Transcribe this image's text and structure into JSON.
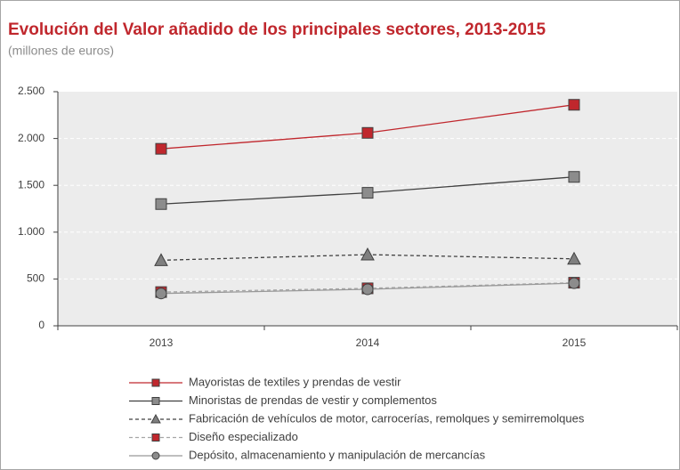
{
  "chart_data": {
    "type": "line",
    "title": "Evolución del Valor añadido de los principales sectores, 2013-2015",
    "subtitle": "(millones de euros)",
    "categories": [
      "2013",
      "2014",
      "2015"
    ],
    "series": [
      {
        "name": "Mayoristas de textiles y prendas de vestir",
        "color": "#c0272d",
        "marker": "square",
        "marker_color": "#c0272d",
        "dash": false,
        "values": [
          1890,
          2060,
          2360
        ]
      },
      {
        "name": "Minoristas de prendas de vestir y complementos",
        "color": "#404040",
        "marker": "square",
        "marker_color": "#8c8c8c",
        "dash": false,
        "values": [
          1300,
          1420,
          1590
        ]
      },
      {
        "name": "Fabricación de vehículos de motor, carrocerías, remolques y semirremolques",
        "color": "#404040",
        "marker": "triangle",
        "marker_color": "#7f7f7f",
        "dash": true,
        "values": [
          700,
          760,
          715
        ]
      },
      {
        "name": "Diseño especializado",
        "color": "#a6a6a6",
        "marker": "square",
        "marker_color": "#c0272d",
        "dash": true,
        "values": [
          360,
          400,
          460
        ]
      },
      {
        "name": "Depósito, almacenamiento y manipulación de mercancías",
        "color": "#999999",
        "marker": "circle",
        "marker_color": "#8c8c8c",
        "dash": false,
        "values": [
          345,
          390,
          455
        ]
      }
    ],
    "ylim": [
      0,
      2500
    ],
    "yticks": [
      0,
      500,
      {
        "value": 1000,
        "label": "1.000"
      },
      {
        "value": 1500,
        "label": "1.500"
      },
      {
        "value": 2000,
        "label": "2.000"
      },
      {
        "value": 2500,
        "label": "2.500"
      }
    ],
    "grid": true,
    "legend": "bottom"
  }
}
